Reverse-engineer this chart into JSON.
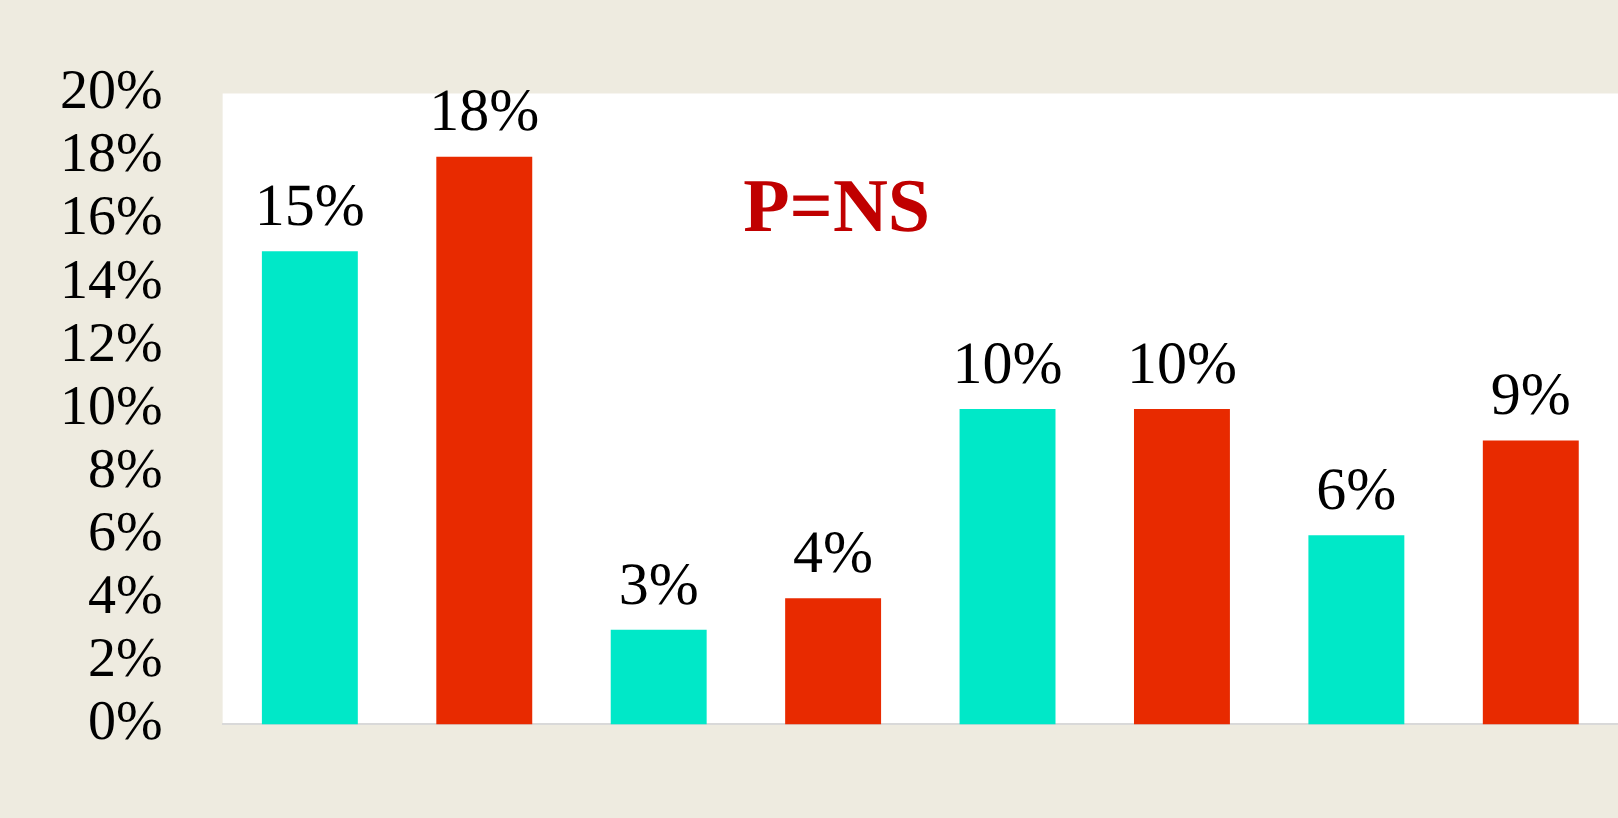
{
  "chart_data": {
    "type": "bar",
    "categories": [
      null,
      null,
      null,
      null
    ],
    "series": [
      {
        "color": "#00e8c8",
        "values": [
          15,
          3,
          10,
          6
        ],
        "value_labels": [
          "15%",
          "3%",
          "10%",
          "6%"
        ]
      },
      {
        "color": "#e82a00",
        "values": [
          18,
          4,
          10,
          9
        ],
        "value_labels": [
          "18%",
          "4%",
          "10%",
          "9%"
        ]
      }
    ],
    "ylim": [
      0,
      20
    ],
    "yticks": [
      {
        "value": 0,
        "label": "0%"
      },
      {
        "value": 2,
        "label": "2%"
      },
      {
        "value": 4,
        "label": "4%"
      },
      {
        "value": 6,
        "label": "6%"
      },
      {
        "value": 8,
        "label": "8%"
      },
      {
        "value": 10,
        "label": "10%"
      },
      {
        "value": 12,
        "label": "12%"
      },
      {
        "value": 14,
        "label": "14%"
      },
      {
        "value": 16,
        "label": "16%"
      },
      {
        "value": 18,
        "label": "18%"
      },
      {
        "value": 20,
        "label": "20%"
      }
    ],
    "annotations": [
      "P=NS"
    ],
    "grid": false,
    "legend": false,
    "tick_labels": "y"
  }
}
